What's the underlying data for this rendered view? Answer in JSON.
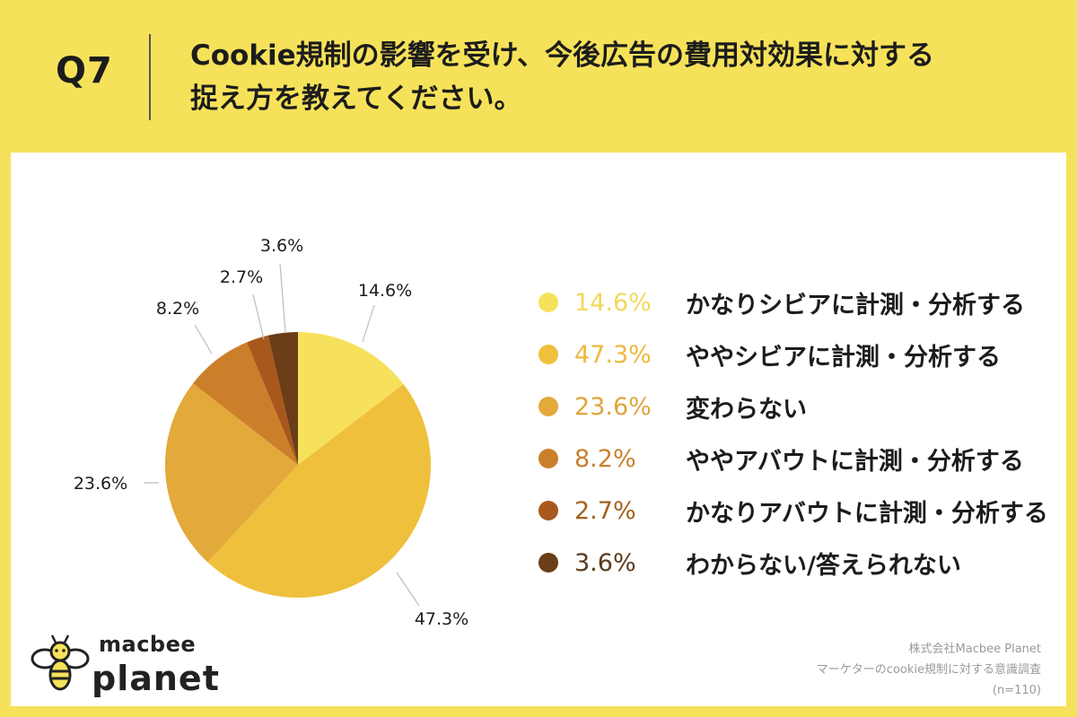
{
  "question": {
    "number": "Q7",
    "line1": "Cookie規制の影響を受け、今後広告の費用対効果に対する",
    "line2": "捉え方を教えてください。"
  },
  "chart_data": {
    "type": "pie",
    "categories": [
      "かなりシビアに計測・分析する",
      "ややシビアに計測・分析する",
      "変わらない",
      "ややアバウトに計測・分析する",
      "かなりアバウトに計測・分析する",
      "わからない/答えられない"
    ],
    "values": [
      14.6,
      47.3,
      23.6,
      8.2,
      2.7,
      3.6
    ],
    "value_labels": [
      "14.6%",
      "47.3%",
      "23.6%",
      "8.2%",
      "2.7%",
      "3.6%"
    ],
    "legend_labels": [
      "かなりシビアに計測・分析する",
      "ややシビアに計測・分析する",
      "変わらない",
      "ややアバウトに計測・分析する",
      "かなりアバウトに計測・分析する",
      "わからない/答えられない"
    ],
    "colors": [
      "#f7e15c",
      "#efc03c",
      "#e3a93b",
      "#cc7f2a",
      "#a8581c",
      "#6a3e16"
    ],
    "legend_pct_colors": [
      "#f2d85a",
      "#ebb93d",
      "#dfa53c",
      "#c9812c",
      "#a5601f",
      "#5a3a18"
    ],
    "start": "top",
    "direction": "clockwise",
    "legend_position": "right"
  },
  "source": {
    "line1": "株式会社Macbee Planet",
    "line2": "マーケターのcookie規制に対する意識調査",
    "line3": "(n=110)"
  },
  "logo": {
    "top": "macbee",
    "bottom": "planet"
  }
}
